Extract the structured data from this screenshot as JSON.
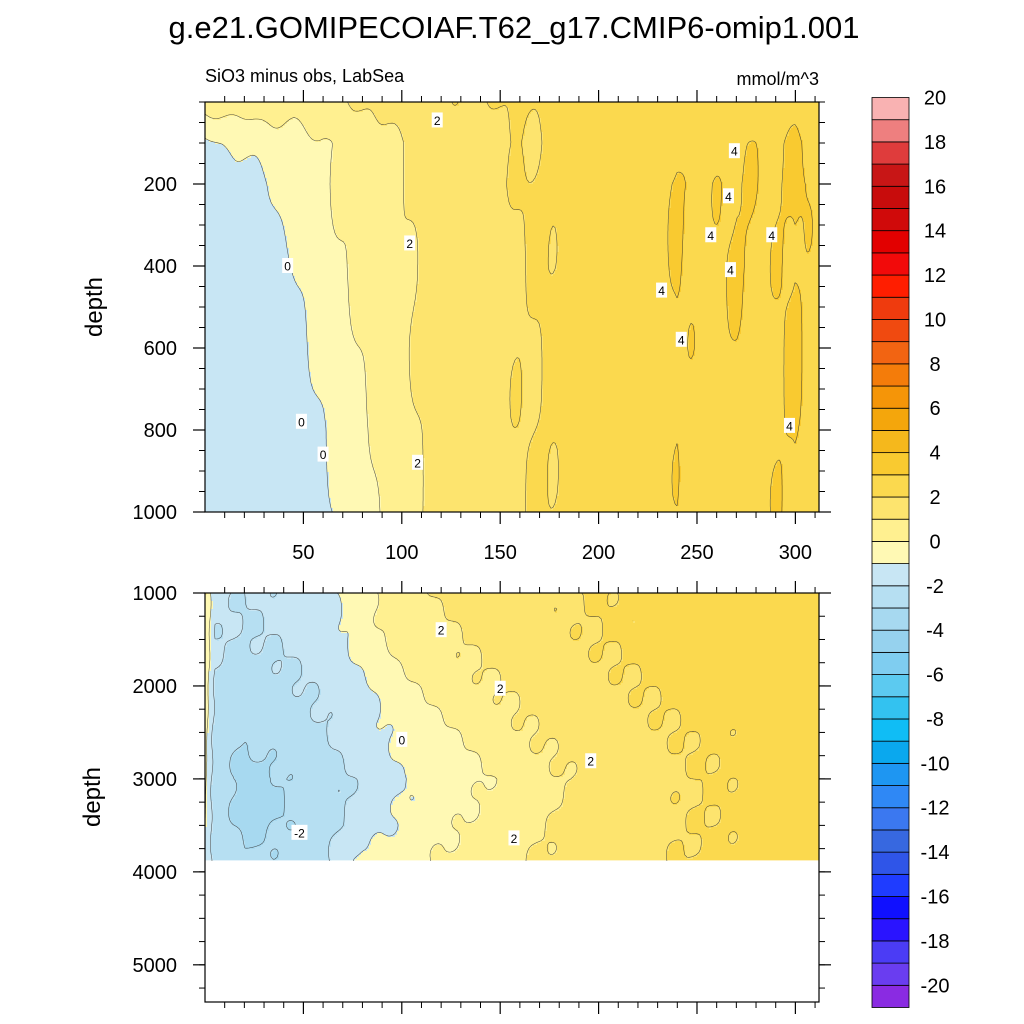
{
  "chart_data": {
    "type": "heatmap",
    "title": "g.e21.GOMIPECOIAF.T62_g17.CMIP6-omip1.001",
    "subtitle_left": "SiO3 minus obs, LabSea",
    "units": "mmol/m^3",
    "xlim": [
      0,
      312
    ],
    "x_tick_labels": [
      "50",
      "100",
      "150",
      "200",
      "250",
      "300"
    ],
    "x_tick_values": [
      50,
      100,
      150,
      200,
      250,
      300
    ],
    "panels": [
      {
        "name": "upper",
        "ylabel": "depth",
        "ylim": [
          0,
          1000
        ],
        "y_tick_labels": [
          "200",
          "400",
          "600",
          "800",
          "1000"
        ],
        "y_tick_values": [
          200,
          400,
          600,
          800,
          1000
        ],
        "approx_field": {
          "x": [
            0,
            20,
            45,
            60,
            75,
            100,
            120,
            150,
            175,
            200,
            225,
            240,
            255,
            270,
            285,
            300,
            312
          ],
          "y": [
            0,
            100,
            200,
            400,
            600,
            800,
            1000
          ],
          "values": [
            [
              1.5,
              1.5,
              1.5,
              1.6,
              2.0,
              2.4,
              2.8,
              3.0,
              3.2,
              3.3,
              3.4,
              3.5,
              3.5,
              3.5,
              3.5,
              3.5,
              3.4
            ],
            [
              -0.2,
              0.3,
              0.6,
              0.9,
              1.4,
              2.0,
              2.5,
              2.8,
              3.1,
              3.3,
              3.5,
              3.9,
              3.7,
              4.0,
              3.8,
              4.1,
              3.6
            ],
            [
              -0.7,
              -0.5,
              0.5,
              0.8,
              1.3,
              2.0,
              2.5,
              2.9,
              3.2,
              3.4,
              3.6,
              4.1,
              3.8,
              4.1,
              3.8,
              4.2,
              3.7
            ],
            [
              -0.8,
              -0.7,
              -0.1,
              0.5,
              1.1,
              1.9,
              2.5,
              2.8,
              3.1,
              3.3,
              3.6,
              4.0,
              3.7,
              4.1,
              3.8,
              4.1,
              3.7
            ],
            [
              -0.8,
              -0.7,
              -0.4,
              0.3,
              0.8,
              1.8,
              2.4,
              2.8,
              3.1,
              3.3,
              3.5,
              4.0,
              3.7,
              3.9,
              3.8,
              4.1,
              3.6
            ],
            [
              -0.8,
              -0.7,
              -0.5,
              -0.1,
              0.6,
              1.6,
              2.4,
              2.8,
              3.1,
              3.3,
              3.5,
              3.9,
              3.6,
              3.8,
              3.8,
              4.1,
              3.6
            ],
            [
              -0.8,
              -0.7,
              -0.5,
              -0.2,
              0.5,
              1.6,
              2.4,
              2.8,
              3.1,
              3.3,
              3.5,
              3.9,
              3.6,
              3.8,
              3.8,
              4.1,
              3.6
            ]
          ]
        },
        "contour_labels": [
          {
            "text": "2",
            "x": 118,
            "y": 45
          },
          {
            "text": "2",
            "x": 104,
            "y": 345
          },
          {
            "text": "2",
            "x": 108,
            "y": 880
          },
          {
            "text": "0",
            "x": 42,
            "y": 400
          },
          {
            "text": "0",
            "x": 49,
            "y": 780
          },
          {
            "text": "0",
            "x": 60,
            "y": 860
          },
          {
            "text": "4",
            "x": 269,
            "y": 120
          },
          {
            "text": "4",
            "x": 266,
            "y": 230
          },
          {
            "text": "4",
            "x": 257,
            "y": 325
          },
          {
            "text": "4",
            "x": 288,
            "y": 325
          },
          {
            "text": "4",
            "x": 267,
            "y": 410
          },
          {
            "text": "4",
            "x": 232,
            "y": 460
          },
          {
            "text": "4",
            "x": 242,
            "y": 580
          },
          {
            "text": "4",
            "x": 297,
            "y": 790
          }
        ]
      },
      {
        "name": "lower",
        "ylabel": "depth",
        "ylim": [
          1000,
          5400
        ],
        "data_bottom_depth": 3870,
        "y_tick_labels": [
          "1000",
          "2000",
          "3000",
          "4000",
          "5000"
        ],
        "y_tick_values": [
          1000,
          2000,
          3000,
          4000,
          5000
        ],
        "approx_field": {
          "x": [
            0,
            5,
            20,
            40,
            60,
            80,
            100,
            130,
            160,
            190,
            220,
            250,
            280,
            312
          ],
          "y": [
            1000,
            1500,
            2000,
            2500,
            3000,
            3500,
            3870
          ],
          "values": [
            [
              1.0,
              -0.8,
              -1.0,
              -0.8,
              -0.4,
              0.8,
              1.7,
              2.3,
              2.7,
              3.0,
              3.2,
              3.4,
              3.4,
              3.3
            ],
            [
              0.8,
              -0.9,
              -1.1,
              -0.9,
              -0.6,
              0.4,
              1.4,
              2.0,
              2.5,
              2.9,
              3.2,
              3.4,
              3.4,
              3.3
            ],
            [
              0.6,
              -1.1,
              -1.4,
              -1.2,
              -0.8,
              -0.2,
              0.8,
              1.7,
              2.2,
              2.7,
              3.0,
              3.3,
              3.3,
              3.3
            ],
            [
              0.4,
              -1.4,
              -1.9,
              -1.6,
              -1.1,
              -0.5,
              0.3,
              1.1,
              1.9,
              2.4,
              2.8,
              3.1,
              3.2,
              3.3
            ],
            [
              0.2,
              -1.6,
              -2.4,
              -2.0,
              -1.4,
              -0.8,
              -0.1,
              0.6,
              1.5,
              2.1,
              2.6,
              3.0,
              3.2,
              3.3
            ],
            [
              0.0,
              -1.6,
              -2.2,
              -2.0,
              -1.4,
              -0.6,
              0.2,
              1.0,
              1.7,
              2.3,
              2.7,
              3.0,
              3.2,
              3.3
            ],
            [
              -0.2,
              -1.4,
              -1.9,
              -1.8,
              -1.2,
              0.2,
              0.6,
              1.3,
              1.9,
              2.4,
              2.8,
              3.1,
              3.2,
              3.3
            ]
          ]
        },
        "contour_labels": [
          {
            "text": "2",
            "x": 120,
            "y": 1400
          },
          {
            "text": "2",
            "x": 150,
            "y": 2030
          },
          {
            "text": "0",
            "x": 100,
            "y": 2580
          },
          {
            "text": "2",
            "x": 196,
            "y": 2810
          },
          {
            "text": "-2",
            "x": 48,
            "y": 3580
          },
          {
            "text": "2",
            "x": 157,
            "y": 3640
          }
        ]
      }
    ],
    "colorbar": {
      "levels": [
        -20,
        -19,
        -18,
        -17,
        -16,
        -15,
        -14,
        -13,
        -12,
        -11,
        -10,
        -9,
        -8,
        -7,
        -6,
        -5,
        -4,
        -3,
        -2,
        -1,
        0,
        1,
        2,
        3,
        4,
        5,
        6,
        7,
        8,
        9,
        10,
        11,
        12,
        13,
        14,
        15,
        16,
        17,
        18,
        19,
        20
      ],
      "tick_labels": [
        "20",
        "18",
        "16",
        "14",
        "12",
        "10",
        "8",
        "6",
        "4",
        "2",
        "0",
        "-2",
        "-4",
        "-6",
        "-8",
        "-10",
        "-12",
        "-14",
        "-16",
        "-18",
        "-20"
      ],
      "tick_values": [
        20,
        18,
        16,
        14,
        12,
        10,
        8,
        6,
        4,
        2,
        0,
        -2,
        -4,
        -6,
        -8,
        -10,
        -12,
        -14,
        -16,
        -18,
        -20
      ],
      "colors_bottom_to_top": [
        "#8a2be2",
        "#6a3df0",
        "#4b3cf5",
        "#2a14ff",
        "#1010ff",
        "#1f3cff",
        "#2f55e8",
        "#3768e0",
        "#3b78f0",
        "#2f88f5",
        "#1e96f2",
        "#0aa8ee",
        "#10bdf5",
        "#33c2f0",
        "#5ccaf0",
        "#7fcdf0",
        "#96d2ee",
        "#a7d9f0",
        "#b6dff2",
        "#c8e6f4",
        "#fff9b4",
        "#fff090",
        "#fde46e",
        "#fbd94e",
        "#f9ca30",
        "#f5b81c",
        "#f4a60c",
        "#f59508",
        "#f47c0a",
        "#f26412",
        "#f04a10",
        "#ef3b0e",
        "#ff1e00",
        "#f20a0a",
        "#e20000",
        "#d00a0a",
        "#c80c0c",
        "#c81616",
        "#df3c3c",
        "#ee7f7f",
        "#f9b2b2"
      ]
    }
  }
}
